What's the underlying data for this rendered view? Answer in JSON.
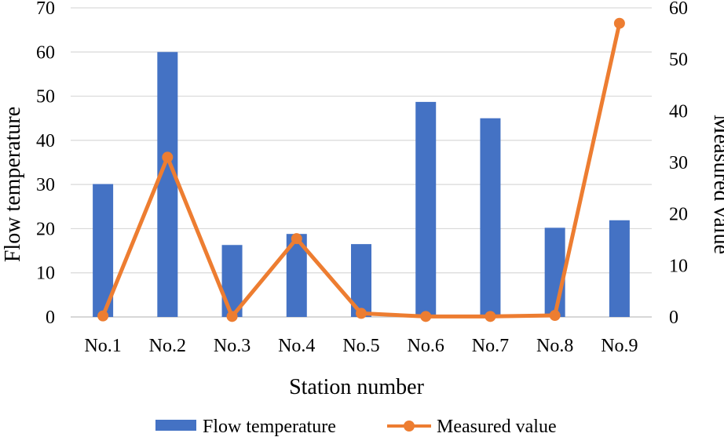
{
  "chart_data": {
    "type": "bar+line",
    "categories": [
      "No.1",
      "No.2",
      "No.3",
      "No.4",
      "No.5",
      "No.6",
      "No.7",
      "No.8",
      "No.9"
    ],
    "series": [
      {
        "name": "Flow temperature",
        "type": "bar",
        "axis": "left",
        "color": "#4472C4",
        "values": [
          30.1,
          60.0,
          16.3,
          18.8,
          16.5,
          48.7,
          45.0,
          20.2,
          21.9
        ]
      },
      {
        "name": "Measured value",
        "type": "line",
        "axis": "right",
        "color": "#ED7D31",
        "values": [
          0.2,
          31.0,
          0.1,
          15.2,
          0.7,
          0.1,
          0.1,
          0.3,
          57.0
        ]
      }
    ],
    "xlabel": "Station number",
    "ylabel": "Flow temperature",
    "y2label": "Measured value",
    "ylim": [
      0,
      70
    ],
    "yticks": [
      0,
      10,
      20,
      30,
      40,
      50,
      60,
      70
    ],
    "y2lim": [
      0,
      60
    ],
    "y2ticks": [
      0,
      10,
      20,
      30,
      40,
      50,
      60
    ],
    "grid": true,
    "legend": "bottom"
  }
}
